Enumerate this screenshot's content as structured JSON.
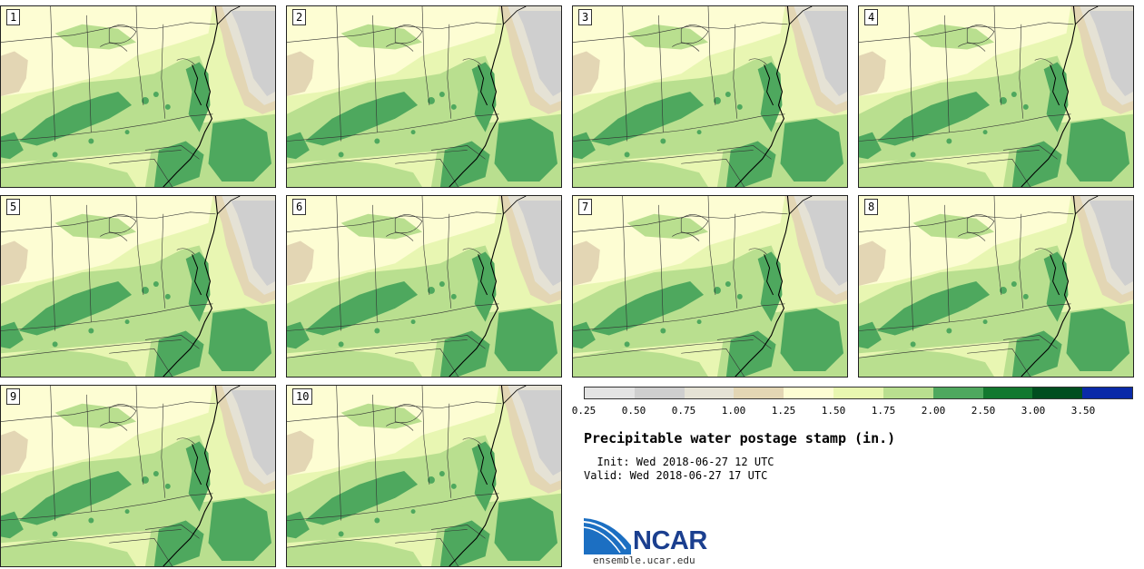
{
  "panels": [
    {
      "label": "1"
    },
    {
      "label": "2"
    },
    {
      "label": "3"
    },
    {
      "label": "4"
    },
    {
      "label": "5"
    },
    {
      "label": "6"
    },
    {
      "label": "7"
    },
    {
      "label": "8"
    },
    {
      "label": "9"
    },
    {
      "label": "10"
    }
  ],
  "legend": {
    "colors": [
      "#e3e3e3",
      "#cfcfcf",
      "#e5e2d5",
      "#e3d6b4",
      "#fdfdd3",
      "#e8f7b0",
      "#b9df8f",
      "#4ea85e",
      "#12782f",
      "#004e1f",
      "#0a2aa8"
    ],
    "ticks": [
      "0.25",
      "0.50",
      "0.75",
      "1.00",
      "1.25",
      "1.50",
      "1.75",
      "2.00",
      "2.50",
      "3.00",
      "3.50"
    ]
  },
  "title": "Precipitable water postage stamp (in.)",
  "init_line": "  Init: Wed 2018-06-27 12 UTC",
  "valid_line": "Valid: Wed 2018-06-27 17 UTC",
  "logo": {
    "text": "NCAR",
    "url": "ensemble.ucar.edu"
  }
}
